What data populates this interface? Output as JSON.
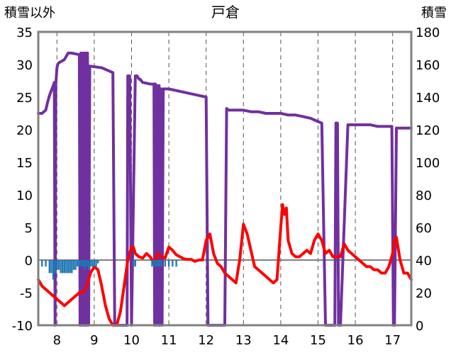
{
  "chart_data": {
    "type": "line",
    "title": "戸倉",
    "left_axis_label": "積雪以外",
    "right_axis_label": "積雪",
    "left_ylim": [
      -10,
      35
    ],
    "left_yticks": [
      -10,
      -5,
      0,
      5,
      10,
      15,
      20,
      25,
      30,
      35
    ],
    "right_ylim": [
      0,
      180
    ],
    "right_yticks": [
      0,
      20,
      40,
      60,
      80,
      100,
      120,
      140,
      160,
      180
    ],
    "xlim": [
      7.5,
      17.5
    ],
    "xticks": [
      8,
      9,
      10,
      11,
      12,
      13,
      14,
      15,
      16,
      17
    ],
    "grid": "dashed-vertical",
    "series": [
      {
        "axis": "right",
        "color": "#7030a0",
        "x": [
          7.5,
          7.6,
          7.7,
          7.75,
          7.8,
          7.85,
          7.9,
          7.93,
          7.95,
          7.97,
          8.0,
          8.02,
          8.05,
          8.2,
          8.3,
          8.4,
          8.6,
          8.62,
          8.64,
          8.66,
          8.7,
          8.72,
          8.74,
          8.76,
          8.78,
          8.8,
          8.82,
          8.85,
          8.88,
          9.2,
          9.3,
          9.4,
          9.5,
          9.55,
          9.58,
          9.62,
          9.65,
          9.7,
          9.85,
          9.88,
          9.9,
          9.95,
          10.0,
          10.1,
          10.15,
          10.2,
          10.23,
          10.26,
          10.3,
          10.5,
          10.6,
          10.62,
          10.64,
          10.66,
          10.7,
          10.72,
          10.74,
          10.76,
          10.8,
          10.82,
          10.85,
          10.9,
          11.0,
          11.2,
          11.4,
          11.6,
          11.8,
          12.0,
          12.05,
          12.08,
          12.12,
          12.15,
          12.5,
          12.55,
          12.6,
          13.0,
          13.2,
          13.4,
          13.6,
          13.8,
          14.0,
          14.2,
          14.4,
          14.6,
          14.8,
          15.0,
          15.1,
          15.2,
          15.3,
          15.4,
          15.45,
          15.48,
          15.52,
          15.55,
          15.6,
          15.8,
          16.0,
          16.2,
          16.4,
          16.6,
          16.8,
          16.95,
          16.98,
          17.02,
          17.05,
          17.1,
          17.2,
          17.3,
          17.5
        ],
        "values": [
          130,
          130,
          132,
          137,
          141,
          144,
          147,
          149,
          0,
          148,
          158,
          160,
          161,
          163,
          167,
          167,
          166,
          0,
          167,
          0,
          167,
          0,
          167,
          0,
          167,
          0,
          167,
          0,
          159,
          158,
          157,
          156,
          155,
          0,
          0,
          0,
          0,
          0,
          0,
          0,
          153,
          153,
          0,
          153,
          153,
          151,
          151,
          150,
          149,
          148,
          148,
          0,
          148,
          0,
          147,
          0,
          147,
          0,
          145,
          0,
          145,
          145,
          145,
          144,
          143,
          142,
          141,
          140,
          0,
          0,
          0,
          0,
          0,
          133,
          132,
          132,
          131,
          131,
          130,
          130,
          130,
          129,
          129,
          128,
          127,
          125,
          124,
          0,
          0,
          0,
          0,
          124,
          124,
          0,
          0,
          123,
          123,
          123,
          123,
          122,
          122,
          122,
          122,
          0,
          0,
          121,
          121,
          121,
          121
        ]
      },
      {
        "axis": "left",
        "color": "#ff0000",
        "x": [
          7.5,
          7.6,
          7.7,
          7.8,
          7.9,
          8.0,
          8.1,
          8.2,
          8.3,
          8.4,
          8.5,
          8.6,
          8.7,
          8.8,
          8.9,
          9.0,
          9.1,
          9.2,
          9.3,
          9.4,
          9.5,
          9.6,
          9.7,
          9.8,
          9.9,
          10.0,
          10.05,
          10.1,
          10.2,
          10.3,
          10.4,
          10.5,
          10.6,
          10.7,
          10.8,
          10.9,
          11.0,
          11.1,
          11.2,
          11.3,
          11.4,
          11.5,
          11.6,
          11.7,
          11.8,
          11.9,
          12.0,
          12.1,
          12.2,
          12.3,
          12.4,
          12.5,
          12.6,
          12.7,
          12.8,
          12.9,
          13.0,
          13.1,
          13.2,
          13.3,
          13.4,
          13.5,
          13.6,
          13.7,
          13.8,
          13.9,
          14.0,
          14.05,
          14.1,
          14.15,
          14.2,
          14.3,
          14.4,
          14.5,
          14.6,
          14.7,
          14.8,
          14.9,
          15.0,
          15.1,
          15.2,
          15.3,
          15.4,
          15.5,
          15.6,
          15.7,
          15.8,
          15.9,
          16.0,
          16.1,
          16.2,
          16.3,
          16.4,
          16.5,
          16.6,
          16.7,
          16.8,
          16.9,
          17.0,
          17.05,
          17.1,
          17.2,
          17.3,
          17.4,
          17.5
        ],
        "values": [
          -3,
          -4,
          -4.5,
          -5,
          -5.5,
          -6,
          -6.5,
          -7,
          -6.5,
          -6,
          -5.5,
          -5,
          -5,
          -4,
          -2,
          -1,
          -1.5,
          -4,
          -7,
          -9,
          -10,
          -10,
          -8,
          -4,
          0,
          2,
          2,
          1,
          0.5,
          0.3,
          1,
          0.5,
          -0.5,
          1,
          0.5,
          0.3,
          2,
          1.5,
          0.8,
          0.5,
          0.2,
          0.1,
          0.1,
          -0.2,
          0,
          0,
          3,
          4,
          1,
          -0.5,
          -1,
          -2,
          -2.5,
          -3,
          -3.5,
          0,
          5.5,
          4,
          1.5,
          -1,
          -1.5,
          -2,
          -2.5,
          -3,
          -3.5,
          -3,
          5,
          8.5,
          7,
          8,
          3,
          1,
          0.5,
          0.5,
          1,
          1.5,
          1,
          3,
          4,
          3,
          1,
          1.5,
          0.5,
          0.5,
          0.5,
          2.5,
          1.5,
          1,
          0.5,
          0,
          -0.5,
          -1,
          -1,
          -1.5,
          -1.5,
          -2,
          -2,
          -1,
          1,
          3,
          3.5,
          0,
          -2,
          -2,
          -3
        ]
      },
      {
        "axis": "left",
        "type": "bar",
        "color": "#1f77b4",
        "x": [
          7.6,
          7.7,
          7.8,
          7.85,
          7.9,
          7.95,
          8.0,
          8.05,
          8.1,
          8.15,
          8.2,
          8.25,
          8.3,
          8.35,
          8.4,
          8.45,
          8.5,
          8.55,
          8.6,
          8.65,
          8.7,
          8.75,
          8.8,
          8.85,
          8.9,
          8.95,
          9.0,
          9.05,
          9.1,
          10.05,
          10.1,
          10.55,
          10.6,
          10.65,
          10.7,
          10.75,
          10.8,
          10.9,
          11.0,
          11.1,
          11.2
        ],
        "values": [
          -1,
          -1,
          -2,
          -2,
          -3,
          -2,
          -1.5,
          -1.5,
          -2,
          -2,
          -2,
          -2,
          -2,
          -2,
          -2,
          -1.5,
          -1.5,
          -1,
          -1,
          -1,
          -1,
          -1.5,
          -1,
          -1.5,
          -1,
          -1,
          -1,
          -1,
          -0.5,
          -1,
          -1,
          -1,
          -1,
          -1,
          -1,
          -1,
          -1,
          -1,
          -1,
          -1,
          -1
        ]
      }
    ]
  }
}
